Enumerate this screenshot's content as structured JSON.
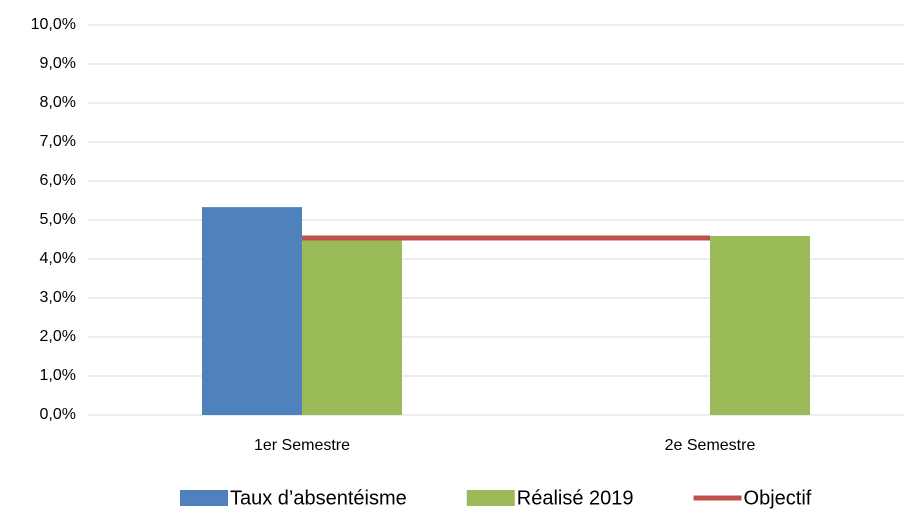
{
  "chart_data": {
    "type": "bar",
    "categories": [
      "1er Semestre",
      "2e Semestre"
    ],
    "series": [
      {
        "name": "Taux d’absentéisme",
        "color": "#4f81bd",
        "values": [
          5.33,
          null
        ]
      },
      {
        "name": "Réalisé 2019",
        "color": "#9bbb59",
        "values": [
          4.5,
          4.59
        ]
      },
      {
        "name": "Objectif",
        "color": "#c0504d",
        "type": "line",
        "values": [
          4.54,
          4.54
        ]
      }
    ],
    "ylim": [
      0,
      10
    ],
    "yticks": [
      {
        "value": 0,
        "label": "0,0%"
      },
      {
        "value": 1,
        "label": "1,0%"
      },
      {
        "value": 2,
        "label": "2,0%"
      },
      {
        "value": 3,
        "label": "3,0%"
      },
      {
        "value": 4,
        "label": "4,0%"
      },
      {
        "value": 5,
        "label": "5,0%"
      },
      {
        "value": 6,
        "label": "6,0%"
      },
      {
        "value": 7,
        "label": "7,0%"
      },
      {
        "value": 8,
        "label": "8,0%"
      },
      {
        "value": 9,
        "label": "9,0%"
      },
      {
        "value": 10,
        "label": "10,0%"
      }
    ],
    "grid": true,
    "legend": "bottom"
  }
}
